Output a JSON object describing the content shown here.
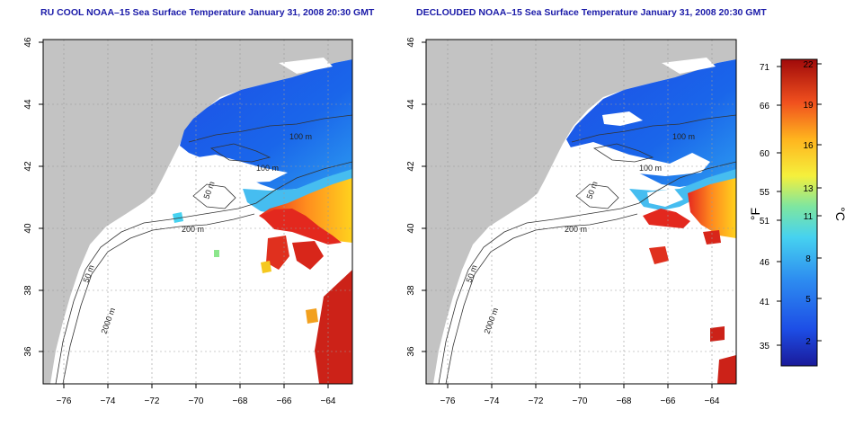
{
  "panels": [
    {
      "title": "RU COOL NOAA–15 Sea Surface Temperature January 31, 2008 20:30 GMT",
      "contour_labels": [
        "100 m",
        "100 m",
        "50 m",
        "200 m",
        "50 m",
        "2000 m"
      ]
    },
    {
      "title": "DECLOUDED NOAA–15 Sea Surface Temperature January 31, 2008 20:30 GMT",
      "contour_labels": [
        "100 m",
        "100 m",
        "50 m",
        "200 m",
        "50 m",
        "2000 m"
      ]
    }
  ],
  "axes": {
    "x_ticks": [
      "−76",
      "−74",
      "−72",
      "−70",
      "−68",
      "−66",
      "−64"
    ],
    "y_ticks": [
      "36",
      "38",
      "40",
      "42",
      "44",
      "46"
    ]
  },
  "colorbar": {
    "f_label": "°F",
    "c_label": "°C",
    "f_ticks": [
      "71",
      "66",
      "60",
      "55",
      "51",
      "46",
      "41",
      "35"
    ],
    "c_ticks": [
      "22",
      "19",
      "16",
      "13",
      "11",
      "8",
      "5",
      "2"
    ]
  },
  "colors": {
    "land": "#c3c3c3",
    "cold": "#1d4ee6",
    "cool": "#2d8cf0",
    "mid": "#46d2f0",
    "warm": "#ffd21e",
    "hot": "#e6281e",
    "title": "#1a1aa8"
  }
}
